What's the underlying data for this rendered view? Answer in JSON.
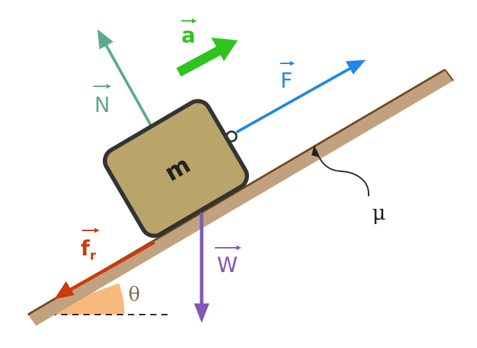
{
  "colors": {
    "incline_surface": "#c2a27e",
    "incline_edge": "#6e4a1f",
    "block_fill": "#b9a56a",
    "block_border": "#333333",
    "normal_force": "#5daa8a",
    "applied_force": "#1e88e5",
    "acceleration": "#2ec41e",
    "friction": "#cc3a0e",
    "weight": "#7f59b3",
    "angle_fill": "#f8b97c",
    "angle_text": "#8a6a4a",
    "label_text": "#222222"
  },
  "labels": {
    "mass": "m",
    "normal_force": "N",
    "acceleration": "a",
    "applied_force": "F",
    "friction": "f",
    "friction_subscript": "r",
    "weight": "W",
    "friction_coefficient": "μ",
    "angle": "θ"
  }
}
